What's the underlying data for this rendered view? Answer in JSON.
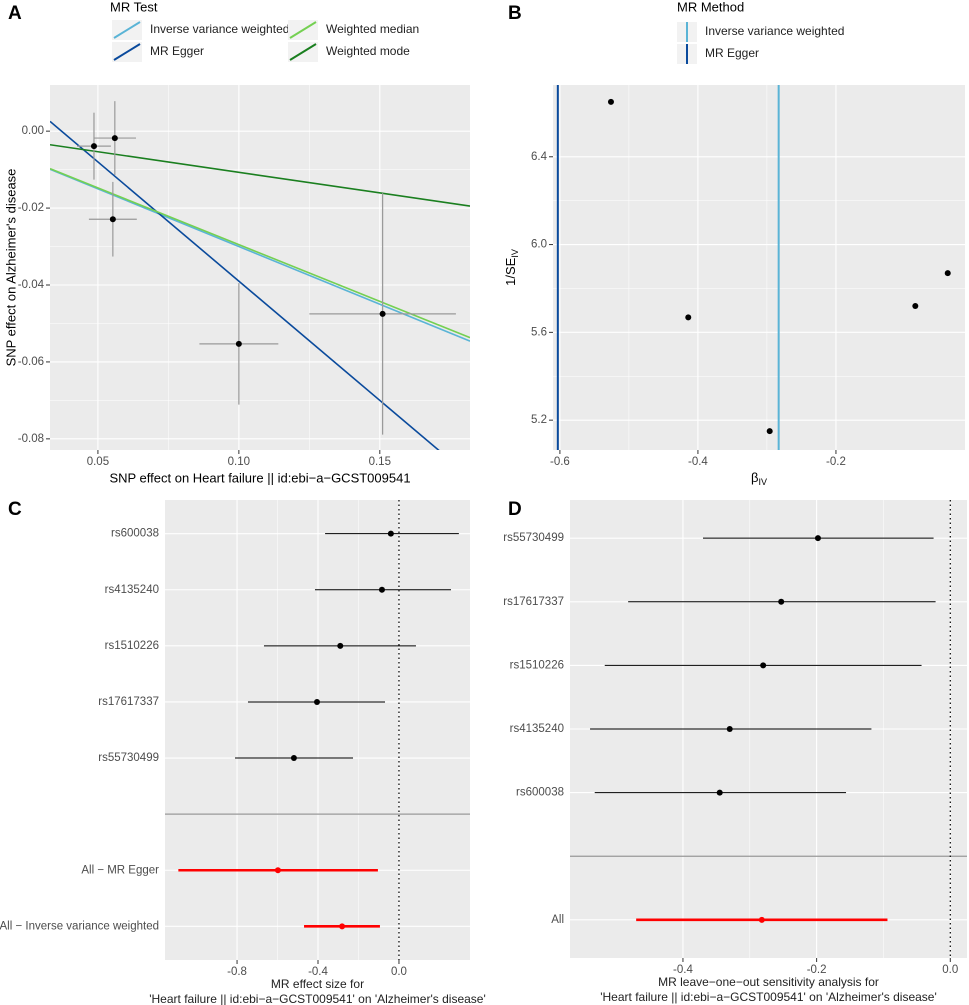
{
  "chart_data": [
    {
      "type": "scatter",
      "panel_label": "A",
      "x_label": "SNP effect on Heart failure || id:ebi−a−GCST009541",
      "y_label": "SNP effect on Alzheimer's disease",
      "legend_title": "MR Test",
      "x": [
        0.0486,
        0.056,
        0.0553,
        0.1,
        0.151
      ],
      "values": [
        -0.0039,
        -0.0018,
        -0.0229,
        -0.0553,
        -0.0475
      ],
      "x_err": [
        0.006,
        0.0075,
        0.0085,
        0.014,
        0.026
      ],
      "y_err": [
        0.0087,
        0.0096,
        0.0097,
        0.0158,
        0.0314
      ],
      "point_color": "#000000",
      "error_color": "#999999",
      "lines": [
        {
          "name": "Inverse variance weighted",
          "color": "#5ab4d6",
          "slope": -0.3,
          "intercept": 0
        },
        {
          "name": "MR Egger",
          "color": "#0a4a9c",
          "slope": -0.62,
          "intercept": 0.023
        },
        {
          "name": "Weighted median",
          "color": "#74d052",
          "slope": -0.295,
          "intercept": 0
        },
        {
          "name": "Weighted mode",
          "color": "#1a7f1f",
          "slope": -0.107,
          "intercept": 0
        }
      ],
      "xlim": [
        0.033,
        0.182
      ],
      "xticks": [
        0.05,
        {
          "value": 0.1,
          "label": "0.10"
        },
        0.15
      ],
      "ylim": [
        -0.0829,
        0.012
      ],
      "yticks": [
        {
          "value": 0,
          "label": "0.00"
        },
        -0.02,
        -0.04,
        -0.06,
        -0.08
      ],
      "grid": true
    },
    {
      "type": "funnel",
      "panel_label": "B",
      "x_label": "β",
      "x_label_sub": "IV",
      "y_label": "1/SE",
      "y_label_sub": "IV",
      "legend_title": "MR Method",
      "x": [
        -0.526,
        -0.414,
        -0.296,
        -0.085,
        -0.038
      ],
      "values": [
        6.65,
        5.668,
        5.15,
        5.72,
        5.87
      ],
      "point_color": "#000000",
      "vlines": [
        {
          "name": "Inverse variance weighted",
          "color": "#5ab4d6",
          "value": -0.283
        },
        {
          "name": "MR Egger",
          "color": "#0a4a9c",
          "value": -0.603
        }
      ],
      "xlim": [
        -0.61,
        -0.013
      ],
      "xticks": [
        -0.6,
        -0.4,
        -0.2
      ],
      "ylim": [
        5.064,
        6.727
      ],
      "yticks": [
        5.2,
        5.6,
        {
          "value": 6,
          "label": "6.0"
        },
        6.4
      ],
      "grid": true
    },
    {
      "type": "forest",
      "panel_label": "C",
      "x_label": [
        "MR effect size for",
        "'Heart failure || id:ebi−a−GCST009541' on 'Alzheimer's disease'"
      ],
      "categories": [
        "rs600038",
        "rs4135240",
        "rs1510226",
        "rs17617337",
        "rs55730499",
        null,
        "All − MR Egger",
        "All − Inverse variance weighted"
      ],
      "values": [
        -0.04,
        -0.084,
        -0.29,
        -0.405,
        -0.519,
        null,
        -0.598,
        -0.281
      ],
      "ci_low": [
        -0.365,
        -0.415,
        -0.667,
        -0.746,
        -0.81,
        null,
        -1.09,
        -0.469
      ],
      "ci_high": [
        0.296,
        0.257,
        0.084,
        -0.069,
        -0.227,
        null,
        -0.104,
        -0.094
      ],
      "colors": [
        "#000000",
        "#000000",
        "#000000",
        "#000000",
        "#000000",
        null,
        "#ff0000",
        "#ff0000"
      ],
      "xlim": [
        -1.156,
        0.351
      ],
      "xticks": [
        -0.8,
        -0.4,
        {
          "value": 0,
          "label": "0.0"
        }
      ],
      "vline": 0,
      "grid": true
    },
    {
      "type": "forest",
      "panel_label": "D",
      "x_label": [
        "MR leave−one−out sensitivity analysis for",
        "'Heart failure || id:ebi−a−GCST009541' on 'Alzheimer's disease'"
      ],
      "categories": [
        "rs55730499",
        "rs17617337",
        "rs1510226",
        "rs4135240",
        "rs600038",
        null,
        "All"
      ],
      "values": [
        -0.198,
        -0.253,
        -0.28,
        -0.33,
        -0.345,
        null,
        -0.282
      ],
      "ci_low": [
        -0.37,
        -0.482,
        -0.517,
        -0.539,
        -0.532,
        null,
        -0.47
      ],
      "ci_high": [
        -0.025,
        -0.022,
        -0.043,
        -0.118,
        -0.156,
        null,
        -0.094
      ],
      "colors": [
        "#000000",
        "#000000",
        "#000000",
        "#000000",
        "#000000",
        null,
        "#ff0000"
      ],
      "xlim": [
        -0.569,
        0.025
      ],
      "xticks": [
        -0.4,
        -0.2,
        {
          "value": 0,
          "label": "0.0"
        }
      ],
      "vline": 0,
      "grid": true
    }
  ]
}
